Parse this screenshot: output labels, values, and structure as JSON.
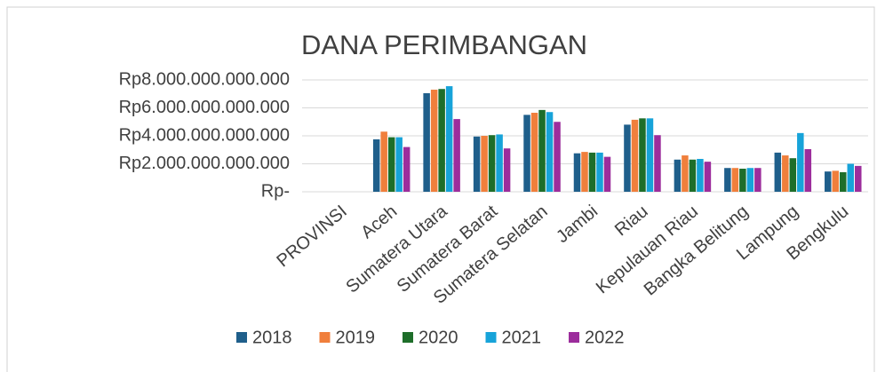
{
  "chart_data": {
    "type": "bar",
    "title": "DANA PERIMBANGAN",
    "categories": [
      "PROVINSI",
      "Aceh",
      "Sumatera Utara",
      "Sumatera Barat",
      "Sumatera Selatan",
      "Jambi",
      "Riau",
      "Kepulauan Riau",
      "Bangka Belitung",
      "Lampung",
      "Bengkulu"
    ],
    "series": [
      {
        "name": "2018",
        "color": "#1f5f8b",
        "values": [
          null,
          3750000000000,
          7050000000000,
          3950000000000,
          5500000000000,
          2750000000000,
          4800000000000,
          2300000000000,
          1700000000000,
          2800000000000,
          1450000000000
        ]
      },
      {
        "name": "2019",
        "color": "#f07f3c",
        "values": [
          null,
          4300000000000,
          7300000000000,
          4000000000000,
          5650000000000,
          2850000000000,
          5150000000000,
          2600000000000,
          1700000000000,
          2600000000000,
          1500000000000
        ]
      },
      {
        "name": "2020",
        "color": "#1e6e2a",
        "values": [
          null,
          3900000000000,
          7350000000000,
          4050000000000,
          5850000000000,
          2800000000000,
          5250000000000,
          2300000000000,
          1650000000000,
          2400000000000,
          1400000000000
        ]
      },
      {
        "name": "2021",
        "color": "#17a3d9",
        "values": [
          null,
          3900000000000,
          7550000000000,
          4100000000000,
          5700000000000,
          2800000000000,
          5250000000000,
          2350000000000,
          1700000000000,
          4200000000000,
          2000000000000
        ]
      },
      {
        "name": "2022",
        "color": "#9c2d9c",
        "values": [
          null,
          3200000000000,
          5200000000000,
          3100000000000,
          5000000000000,
          2500000000000,
          4050000000000,
          2150000000000,
          1700000000000,
          3050000000000,
          1850000000000
        ]
      }
    ],
    "ylim": [
      0,
      8000000000000
    ],
    "yticks": [
      {
        "value": 0,
        "label": "Rp-"
      },
      {
        "value": 2000000000000,
        "label": "Rp2.000.000.000.000"
      },
      {
        "value": 4000000000000,
        "label": "Rp4.000.000.000.000"
      },
      {
        "value": 6000000000000,
        "label": "Rp6.000.000.000.000"
      },
      {
        "value": 8000000000000,
        "label": "Rp8.000.000.000.000"
      }
    ],
    "grid": true,
    "legend": "bottom"
  }
}
